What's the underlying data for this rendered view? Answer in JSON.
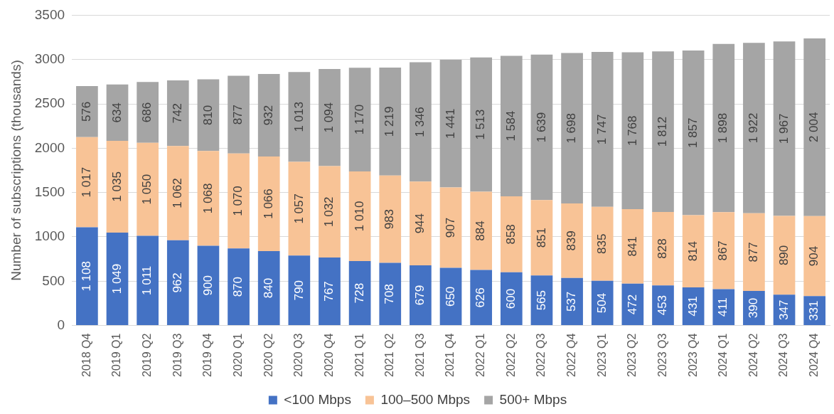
{
  "chart_data": {
    "type": "bar",
    "stacked": true,
    "ylabel": "Number of subscriptions (thousands)",
    "categories": [
      "2018 Q4",
      "2019 Q1",
      "2019 Q2",
      "2019 Q3",
      "2019 Q4",
      "2020 Q1",
      "2020 Q2",
      "2020 Q3",
      "2020 Q4",
      "2021 Q1",
      "2021 Q2",
      "2021 Q3",
      "2021 Q4",
      "2022 Q1",
      "2022 Q2",
      "2022 Q3",
      "2022 Q4",
      "2023 Q1",
      "2023 Q2",
      "2023 Q3",
      "2023 Q4",
      "2024 Q1",
      "2024 Q2",
      "2024 Q3",
      "2024 Q4"
    ],
    "series": [
      {
        "name": "<100 Mbps",
        "color": "#4472c4",
        "values": [
          1108,
          1049,
          1011,
          962,
          900,
          870,
          840,
          790,
          767,
          728,
          708,
          679,
          650,
          626,
          600,
          565,
          537,
          504,
          472,
          453,
          431,
          411,
          390,
          347,
          331
        ],
        "value_labels": [
          "1 108",
          "1 049",
          "1 011",
          "962",
          "900",
          "870",
          "840",
          "790",
          "767",
          "728",
          "708",
          "679",
          "650",
          "626",
          "600",
          "565",
          "537",
          "504",
          "472",
          "453",
          "431",
          "411",
          "390",
          "347",
          "331"
        ]
      },
      {
        "name": "100–500 Mbps",
        "color": "#f8c396",
        "values": [
          1017,
          1035,
          1050,
          1062,
          1068,
          1070,
          1066,
          1057,
          1032,
          1010,
          983,
          944,
          907,
          884,
          858,
          851,
          839,
          835,
          841,
          828,
          814,
          867,
          877,
          890,
          904
        ],
        "value_labels": [
          "1 017",
          "1 035",
          "1 050",
          "1 062",
          "1 068",
          "1 070",
          "1 066",
          "1 057",
          "1 032",
          "1 010",
          "983",
          "944",
          "907",
          "884",
          "858",
          "851",
          "839",
          "835",
          "841",
          "828",
          "814",
          "867",
          "877",
          "890",
          "904"
        ]
      },
      {
        "name": "500+ Mbps",
        "color": "#a5a5a5",
        "values": [
          576,
          634,
          686,
          742,
          810,
          877,
          932,
          1013,
          1094,
          1170,
          1219,
          1346,
          1441,
          1513,
          1584,
          1639,
          1698,
          1747,
          1768,
          1812,
          1857,
          1898,
          1922,
          1967,
          2004
        ],
        "value_labels": [
          "576",
          "634",
          "686",
          "742",
          "810",
          "877",
          "932",
          "1 013",
          "1 094",
          "1 170",
          "1 219",
          "1 346",
          "1 441",
          "1 513",
          "1 584",
          "1 639",
          "1 698",
          "1 747",
          "1 768",
          "1 812",
          "1 857",
          "1 898",
          "1 922",
          "1 967",
          "2 004"
        ]
      }
    ],
    "ylim": [
      0,
      3500
    ],
    "yticks": [
      0,
      500,
      1000,
      1500,
      2000,
      2500,
      3000,
      3500
    ],
    "grid": "y",
    "legend": "bottom"
  }
}
